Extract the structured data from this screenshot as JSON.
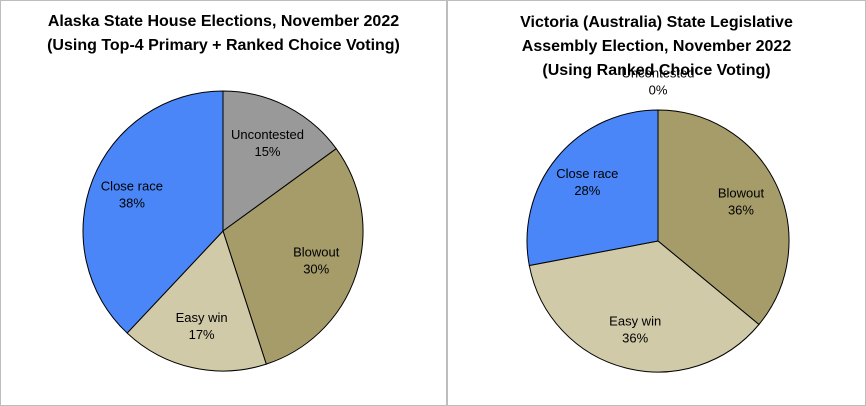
{
  "chart_data": [
    {
      "type": "pie",
      "title": "Alaska State House Elections, November 2022\n(Using Top-4 Primary + Ranked Choice Voting)",
      "categories": [
        "Uncontested",
        "Blowout",
        "Easy win",
        "Close race"
      ],
      "values": [
        15,
        30,
        17,
        38
      ],
      "value_labels": [
        "15%",
        "30%",
        "17%",
        "38%"
      ],
      "colors": [
        "#999999",
        "#a59c6a",
        "#d1caa8",
        "#4a86f7"
      ]
    },
    {
      "type": "pie",
      "title": "Victoria (Australia) State Legislative\nAssembly Election, November 2022\n(Using Ranked Choice Voting)",
      "categories": [
        "Uncontested",
        "Blowout",
        "Easy win",
        "Close race"
      ],
      "values": [
        0,
        36,
        36,
        28
      ],
      "value_labels": [
        "0%",
        "36%",
        "36%",
        "28%"
      ],
      "colors": [
        "#999999",
        "#a59c6a",
        "#d1caa8",
        "#4a86f7"
      ]
    }
  ]
}
